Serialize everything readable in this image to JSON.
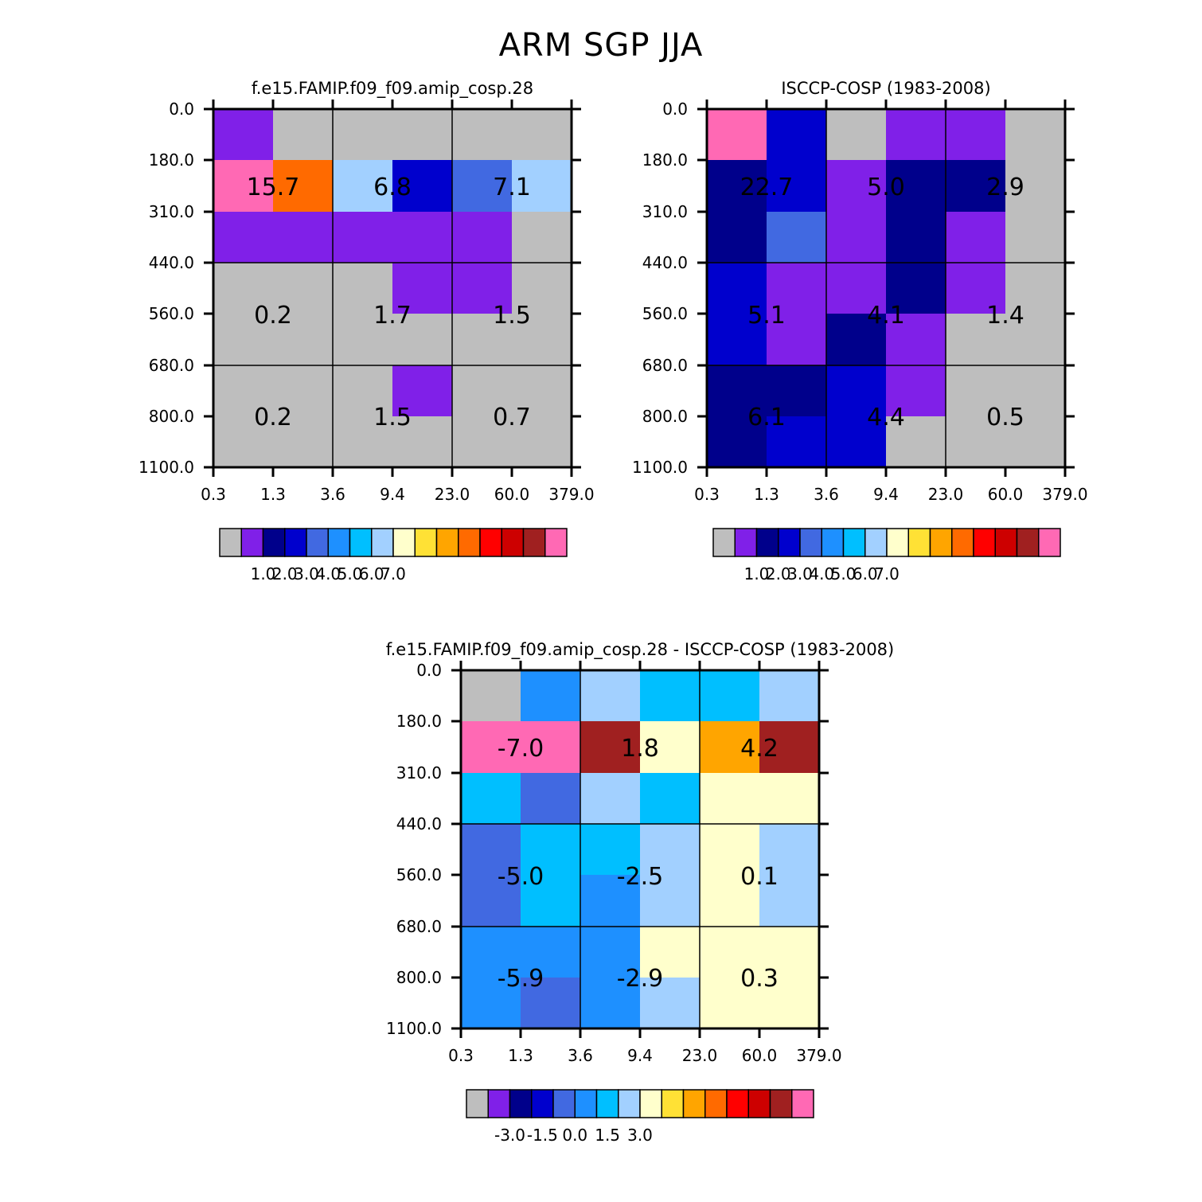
{
  "title": "ARM SGP JJA",
  "x_ticks": [
    "0.3",
    "1.3",
    "3.6",
    "9.4",
    "23.0",
    "60.0",
    "379.0"
  ],
  "y_ticks": [
    "0.0",
    "180.0",
    "310.0",
    "440.0",
    "560.0",
    "680.0",
    "800.0",
    "1100.0"
  ],
  "colorbar_colors": [
    "#bebebe",
    "#8020e8",
    "#00008b",
    "#0000cd",
    "#4169e1",
    "#1e90ff",
    "#00bfff",
    "#a2d0ff",
    "#ffffcc",
    "#ffe135",
    "#ffa500",
    "#ff6a00",
    "#ff0000",
    "#cd0000",
    "#a02020",
    "#ff69b4"
  ],
  "chart_data": [
    {
      "type": "heatmap",
      "title": "f.e15.FAMIP.f09_f09.amip_cosp.28",
      "colors": [
        [
          "#8020e8",
          "#bebebe",
          "#bebebe",
          "#bebebe",
          "#bebebe",
          "#bebebe"
        ],
        [
          "#ff69b4",
          "#ff6a00",
          "#a2d0ff",
          "#0000cd",
          "#4169e1",
          "#a2d0ff"
        ],
        [
          "#8020e8",
          "#8020e8",
          "#8020e8",
          "#8020e8",
          "#8020e8",
          "#bebebe"
        ],
        [
          "#bebebe",
          "#bebebe",
          "#bebebe",
          "#8020e8",
          "#8020e8",
          "#bebebe"
        ],
        [
          "#bebebe",
          "#bebebe",
          "#bebebe",
          "#bebebe",
          "#bebebe",
          "#bebebe"
        ],
        [
          "#bebebe",
          "#bebebe",
          "#bebebe",
          "#8020e8",
          "#bebebe",
          "#bebebe"
        ],
        [
          "#bebebe",
          "#bebebe",
          "#bebebe",
          "#bebebe",
          "#bebebe",
          "#bebebe"
        ]
      ],
      "labels": [
        [
          "15.7",
          "6.8",
          "7.1"
        ],
        [
          "0.2",
          "1.7",
          "1.5"
        ],
        [
          "0.2",
          "1.5",
          "0.7"
        ]
      ],
      "colorbar_ticks": [
        "1.0",
        "2.0",
        "3.0",
        "4.0",
        "5.0",
        "6.0",
        "7.0"
      ]
    },
    {
      "type": "heatmap",
      "title": "ISCCP-COSP (1983-2008)",
      "colors": [
        [
          "#ff69b4",
          "#0000cd",
          "#bebebe",
          "#8020e8",
          "#8020e8",
          "#bebebe"
        ],
        [
          "#00008b",
          "#0000cd",
          "#8020e8",
          "#00008b",
          "#00008b",
          "#bebebe"
        ],
        [
          "#00008b",
          "#4169e1",
          "#8020e8",
          "#00008b",
          "#8020e8",
          "#bebebe"
        ],
        [
          "#0000cd",
          "#8020e8",
          "#8020e8",
          "#00008b",
          "#8020e8",
          "#bebebe"
        ],
        [
          "#0000cd",
          "#8020e8",
          "#00008b",
          "#8020e8",
          "#bebebe",
          "#bebebe"
        ],
        [
          "#00008b",
          "#00008b",
          "#0000cd",
          "#8020e8",
          "#bebebe",
          "#bebebe"
        ],
        [
          "#00008b",
          "#0000cd",
          "#0000cd",
          "#bebebe",
          "#bebebe",
          "#bebebe"
        ]
      ],
      "labels": [
        [
          "22.7",
          "5.0",
          "2.9"
        ],
        [
          "5.1",
          "4.1",
          "1.4"
        ],
        [
          "6.1",
          "4.4",
          "0.5"
        ]
      ],
      "colorbar_ticks": [
        "1.0",
        "2.0",
        "3.0",
        "4.0",
        "5.0",
        "6.0",
        "7.0"
      ]
    },
    {
      "type": "heatmap",
      "title": "f.e15.FAMIP.f09_f09.amip_cosp.28 - ISCCP-COSP (1983-2008)",
      "colors": [
        [
          "#bebebe",
          "#1e90ff",
          "#a2d0ff",
          "#00bfff",
          "#00bfff",
          "#a2d0ff"
        ],
        [
          "#ff69b4",
          "#ff69b4",
          "#a02020",
          "#ffffcc",
          "#ffa500",
          "#a02020"
        ],
        [
          "#00bfff",
          "#4169e1",
          "#a2d0ff",
          "#00bfff",
          "#ffffcc",
          "#ffffcc"
        ],
        [
          "#4169e1",
          "#00bfff",
          "#00bfff",
          "#a2d0ff",
          "#ffffcc",
          "#a2d0ff"
        ],
        [
          "#4169e1",
          "#00bfff",
          "#1e90ff",
          "#a2d0ff",
          "#ffffcc",
          "#a2d0ff"
        ],
        [
          "#1e90ff",
          "#1e90ff",
          "#1e90ff",
          "#ffffcc",
          "#ffffcc",
          "#ffffcc"
        ],
        [
          "#1e90ff",
          "#4169e1",
          "#1e90ff",
          "#a2d0ff",
          "#ffffcc",
          "#ffffcc"
        ]
      ],
      "labels": [
        [
          "-7.0",
          "1.8",
          "4.2"
        ],
        [
          "-5.0",
          "-2.5",
          "0.1"
        ],
        [
          "-5.9",
          "-2.9",
          "0.3"
        ]
      ],
      "colorbar_ticks": [
        "-3.0",
        "-1.5",
        "0.0",
        "1.5",
        "3.0"
      ]
    }
  ]
}
